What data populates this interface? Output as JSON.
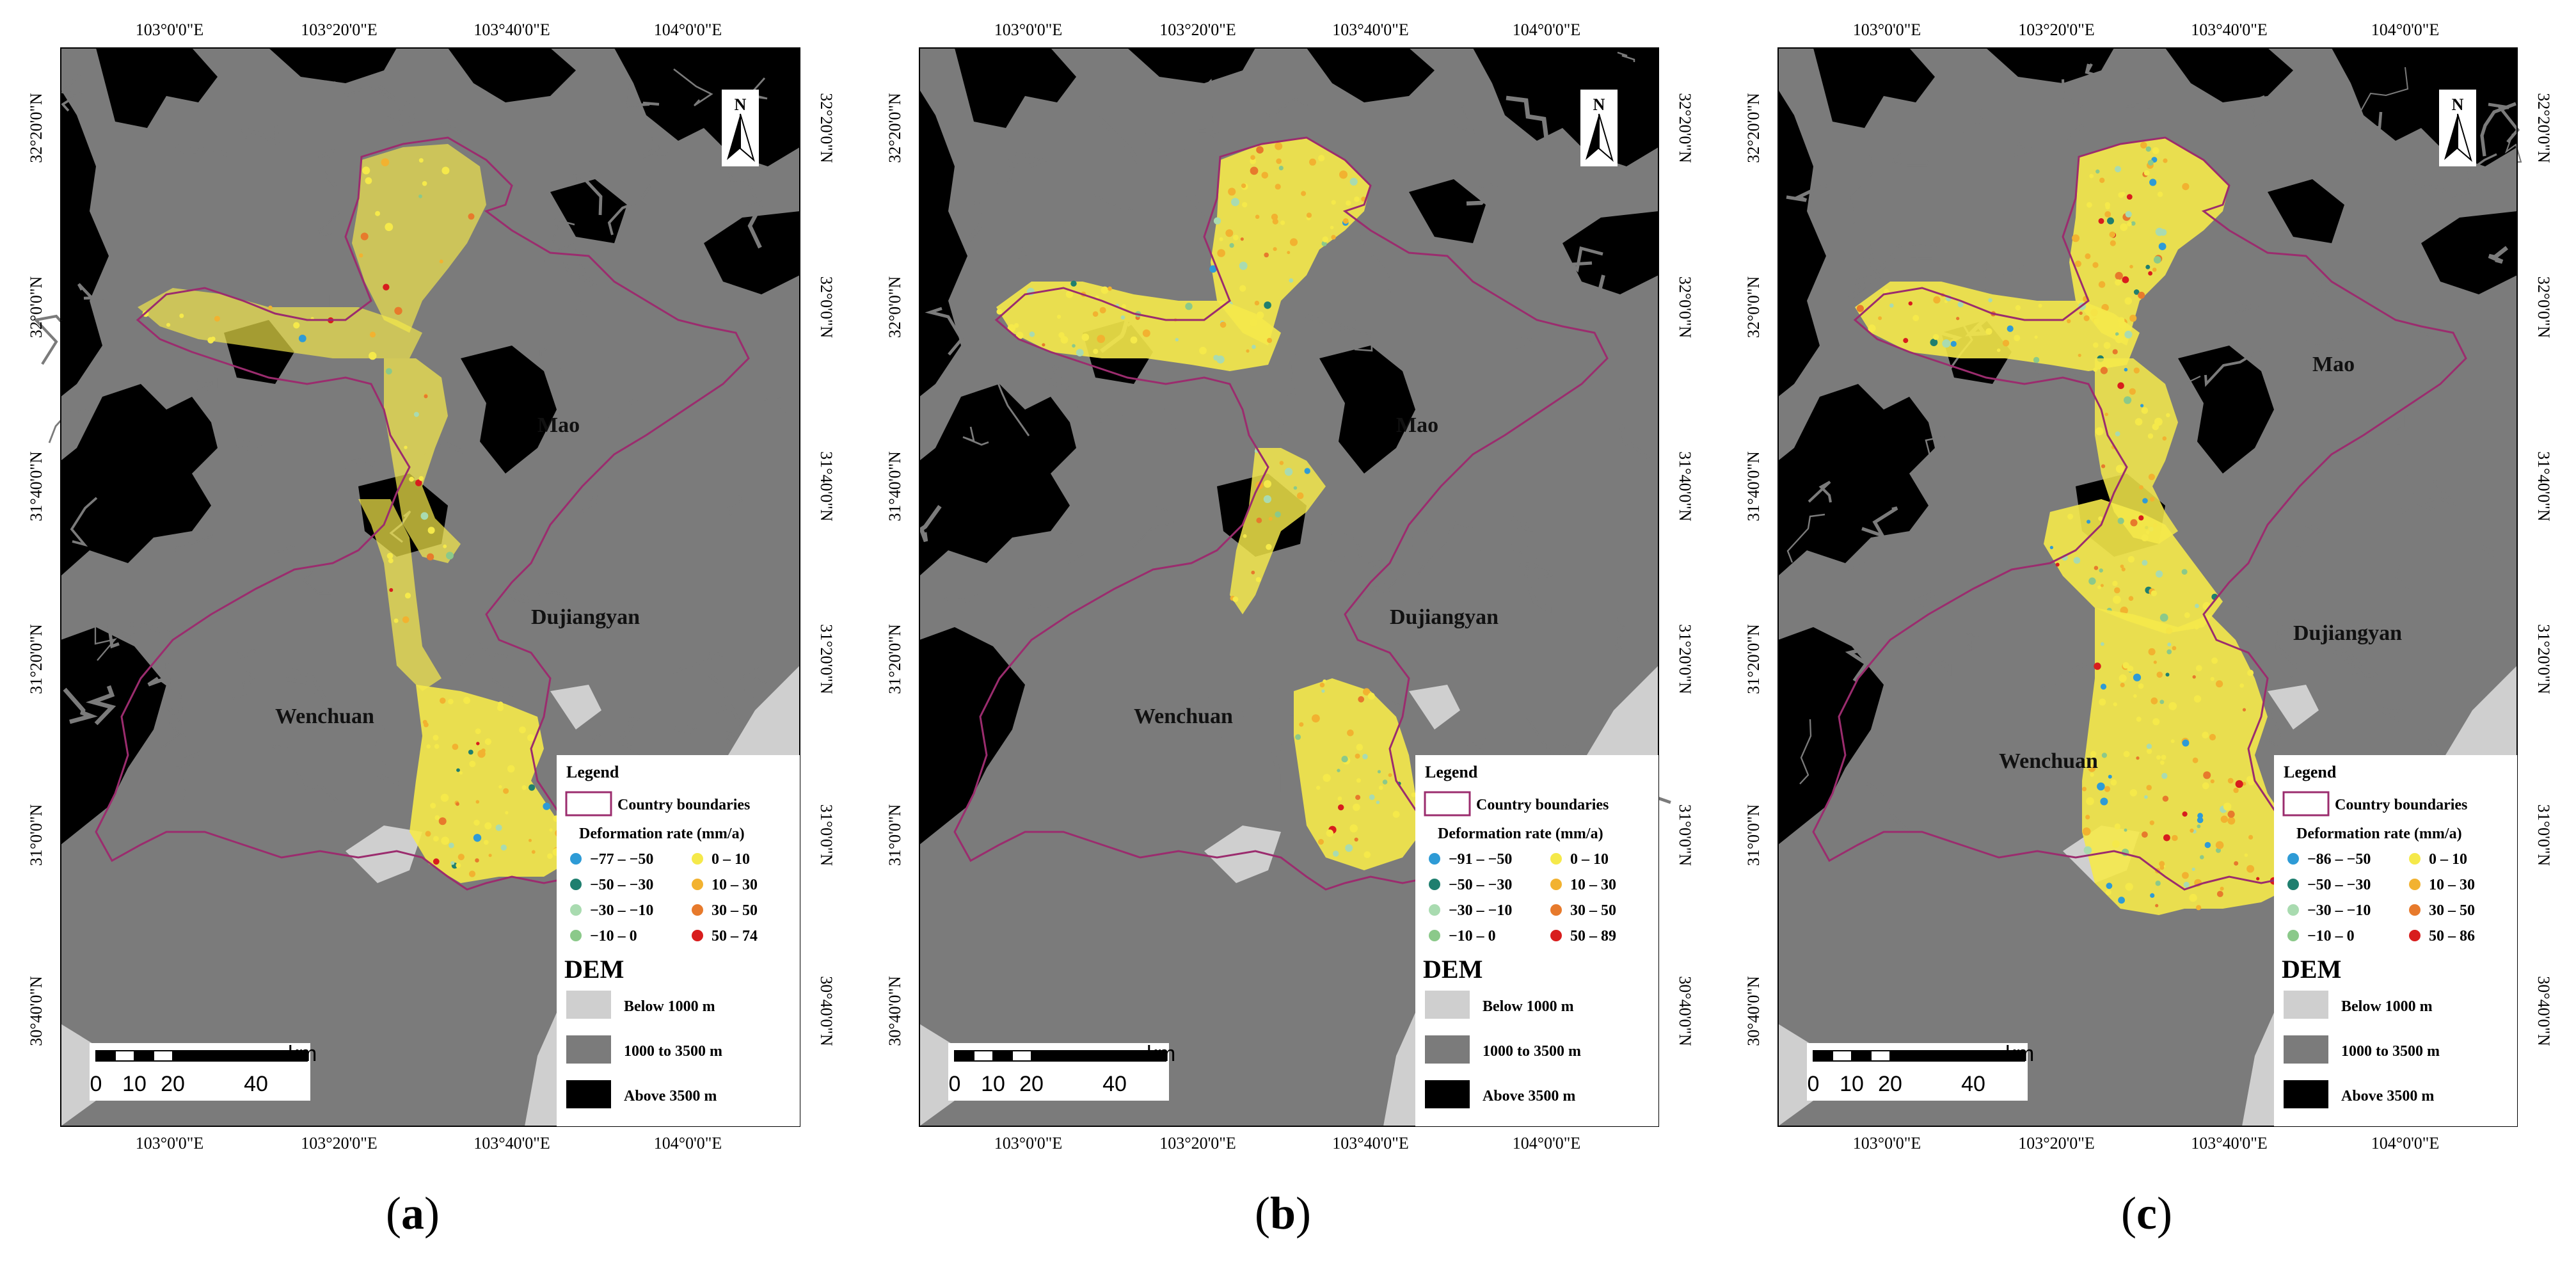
{
  "colors": {
    "low_elevation": "#cfcfcf",
    "mid_elevation": "#7b7b7b",
    "high_elevation": "#000000",
    "county_boundary": "#9b2c6e",
    "deformation": [
      "#2e9bd6",
      "#1f7f6f",
      "#a9dbb0",
      "#8bc98a",
      "#f5e94a",
      "#f2b230",
      "#e77a2c",
      "#d81d1d"
    ]
  },
  "map": {
    "lon_ticks": [
      "103°0'0\"E",
      "103°20'0\"E",
      "103°40'0\"E",
      "104°0'0\"E"
    ],
    "lat_ticks": [
      "32°20'0\"N",
      "32°0'0\"N",
      "31°40'0\"N",
      "31°20'0\"N",
      "31°0'0\"N",
      "30°40'0\"N"
    ],
    "north_label": "N",
    "places": [
      "Mao",
      "Dujiangyan",
      "Wenchuan"
    ],
    "scale_unit": "km",
    "scale_ticks": [
      "0",
      "10",
      "20",
      "40"
    ]
  },
  "legend": {
    "title": "Legend",
    "boundary_label": "Country boundaries",
    "deformation_title": "Deformation rate (mm/a)",
    "dem_title": "DEM",
    "dem_items": [
      "Below 1000 m",
      "1000 to 3500 m",
      "Above 3500 m"
    ]
  },
  "panels": [
    {
      "id": "a",
      "caption": "a",
      "deformation_classes": [
        "−77 – −50",
        "−50 – −30",
        "−30 – −10",
        "−10 – 0",
        "0 – 10",
        "10 – 30",
        "30 – 50",
        "50 – 74"
      ]
    },
    {
      "id": "b",
      "caption": "b",
      "deformation_classes": [
        "−91 – −50",
        "−50 – −30",
        "−30 – −10",
        "−10 – 0",
        "0 – 10",
        "10 – 30",
        "30 – 50",
        "50 – 89"
      ]
    },
    {
      "id": "c",
      "caption": "c",
      "deformation_classes": [
        "−86 – −50",
        "−50 – −30",
        "−30 – −10",
        "−10 – 0",
        "0 – 10",
        "10 – 30",
        "30 – 50",
        "50 – 86"
      ]
    }
  ]
}
